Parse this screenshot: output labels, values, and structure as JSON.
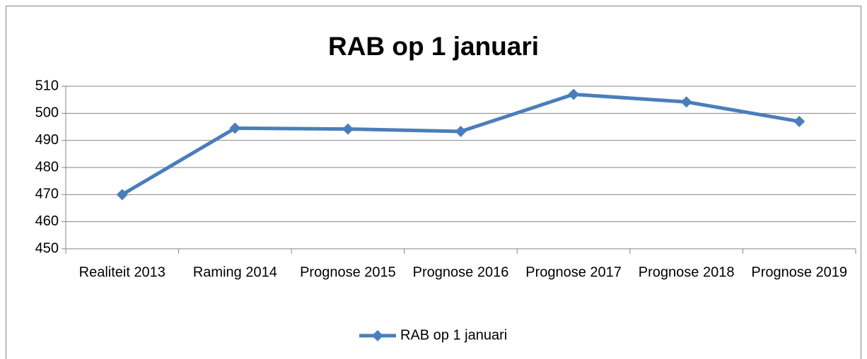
{
  "chart_data": {
    "type": "line",
    "title": "RAB op 1 januari",
    "categories": [
      "Realiteit 2013",
      "Raming 2014",
      "Prognose 2015",
      "Prognose 2016",
      "Prognose 2017",
      "Prognose 2018",
      "Prognose 2019"
    ],
    "series": [
      {
        "name": "RAB op 1 januari",
        "color": "#4a7ebb",
        "values": [
          470,
          494.5,
          494.2,
          493.3,
          507,
          504.2,
          497
        ]
      }
    ],
    "ylim": [
      450,
      510
    ],
    "yticks": [
      450,
      460,
      470,
      480,
      490,
      500,
      510
    ],
    "grid": true,
    "legend": "bottom"
  }
}
